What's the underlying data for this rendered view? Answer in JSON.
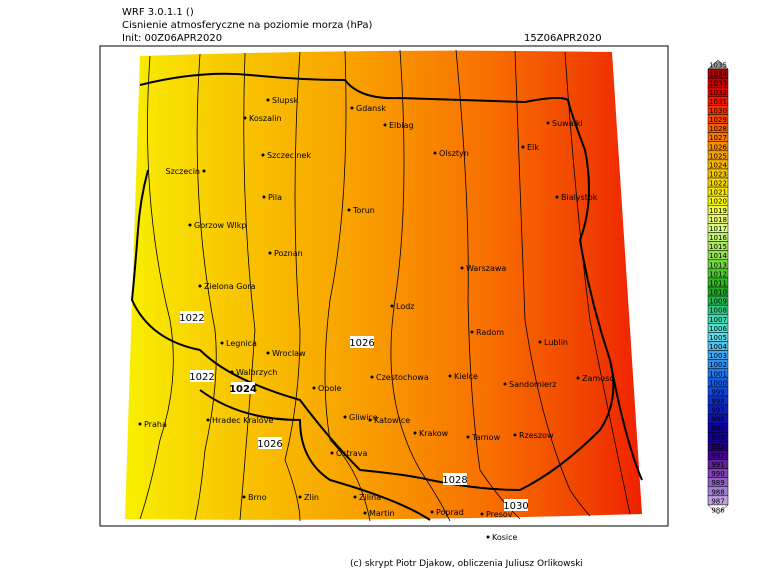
{
  "header": {
    "model": "WRF 3.0.1.1 ()",
    "title": "Cisnienie atmosferyczne na poziomie morza (hPa)",
    "init": "Init: 00Z06APR2020",
    "valid": "15Z06APR2020"
  },
  "cities": [
    "Slupsk",
    "Koszalin",
    "Gdansk",
    "Elblag",
    "Suwalki",
    "Szczecinek",
    "Olsztyn",
    "Elk",
    "Szczecin",
    "Pila",
    "Bialystok",
    "Torun",
    "Gorzow Wlkp",
    "Poznan",
    "Warszawa",
    "Zielona Gora",
    "Lodz",
    "Radom",
    "Lublin",
    "Legnica",
    "Wroclaw",
    "Walbrzych",
    "Czestochowa",
    "Kielce",
    "Zamosc",
    "Sandomierz",
    "Opole",
    "Gliwice",
    "Katowice",
    "Hradec Kralove",
    "Praha",
    "Krakow",
    "Tarnow",
    "Rzeszow",
    "Ostrava",
    "Brno",
    "Zlin",
    "Zilina",
    "Martin",
    "Poprad",
    "Presov",
    "Kosice"
  ],
  "contour_labels": [
    1022,
    1022,
    1024,
    1026,
    1026,
    1028,
    1030
  ],
  "colorbar": {
    "levels": [
      1035,
      1034,
      1033,
      1032,
      1031,
      1030,
      1029,
      1028,
      1027,
      1026,
      1025,
      1024,
      1023,
      1022,
      1021,
      1020,
      1019,
      1018,
      1017,
      1016,
      1015,
      1014,
      1013,
      1012,
      1011,
      1010,
      1009,
      1008,
      1007,
      1006,
      1005,
      1004,
      1003,
      1002,
      1001,
      1000,
      999,
      998,
      997,
      996,
      995,
      994,
      993,
      992,
      991,
      990,
      989,
      988,
      987,
      986
    ],
    "colors": [
      "#a0a0a0",
      "#b40000",
      "#c80000",
      "#e00000",
      "#f01800",
      "#f83000",
      "#f84800",
      "#f86000",
      "#f87800",
      "#f89000",
      "#f8a000",
      "#f8b800",
      "#f8c800",
      "#f8d800",
      "#f8e800",
      "#f8f800",
      "#f0f840",
      "#e8f870",
      "#d8f880",
      "#c0f070",
      "#a8e860",
      "#90e050",
      "#70d840",
      "#50c830",
      "#30b820",
      "#20a820",
      "#20b850",
      "#30c880",
      "#40d8b0",
      "#50e0d0",
      "#60d8e8",
      "#50c0f0",
      "#40a8f0",
      "#3090f0",
      "#2078f0",
      "#1060e8",
      "#1048e0",
      "#1030d0",
      "#1020c0",
      "#1010b0",
      "#1000a0",
      "#100090",
      "#200080",
      "#400090",
      "#6020a0",
      "#8040b0",
      "#9060c0",
      "#a080d0",
      "#c0a0e0",
      "#ffffff"
    ]
  },
  "footer": "(c) skrypt Piotr Djakow, obliczenia Juliusz Orlikowski"
}
